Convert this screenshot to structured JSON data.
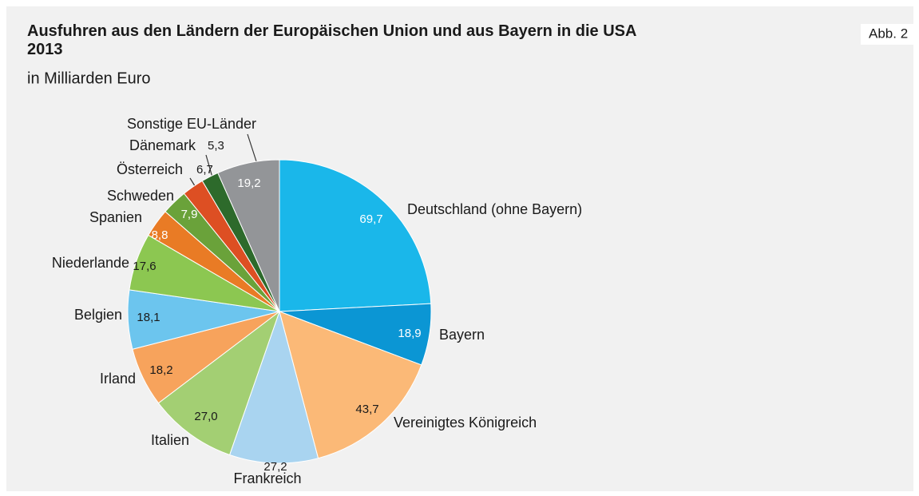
{
  "chart_data": {
    "type": "pie",
    "title": "Ausfuhren aus den Ländern der Europäischen Union und aus Bayern in die USA 2013",
    "subtitle": "in Milliarden Euro",
    "figure_label": "Abb. 2",
    "categories": [
      "Deutschland (ohne Bayern)",
      "Bayern",
      "Vereinigtes Königreich",
      "Frankreich",
      "Italien",
      "Irland",
      "Belgien",
      "Niederlande",
      "Spanien",
      "Schweden",
      "Österreich",
      "Dänemark",
      "Sonstige EU-Länder"
    ],
    "values": [
      69.7,
      18.9,
      43.7,
      27.2,
      27.0,
      18.2,
      18.1,
      17.6,
      8.8,
      7.9,
      6.7,
      5.3,
      19.2
    ],
    "value_labels": [
      "69,7",
      "18,9",
      "43,7",
      "27,2",
      "27,0",
      "18,2",
      "18,1",
      "17,6",
      "8,8",
      "7,9",
      "6,7",
      "5,3",
      "19,2"
    ],
    "colors": [
      "#1ab7ea",
      "#0b96d4",
      "#fbb977",
      "#a9d4f0",
      "#a3cf73",
      "#f7a35c",
      "#6cc5ee",
      "#8cc751",
      "#e97b25",
      "#6aa23a",
      "#dd4f23",
      "#2d6a2b",
      "#939598"
    ]
  }
}
